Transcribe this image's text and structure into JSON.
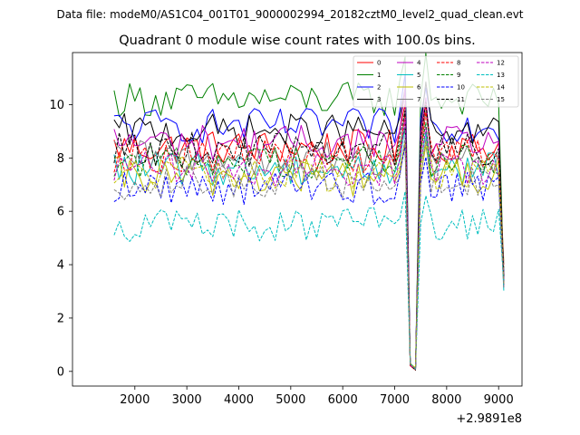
{
  "suptitle": "Data file: modeM0/AS1C04_001T01_9000002994_20182cztM0_level2_quad_clean.evt",
  "chart_data": {
    "type": "line",
    "title": "Quadrant 0 module wise count rates with 100.0s bins.",
    "xlabel": "",
    "ylabel": "",
    "x_offset_label": "+2.9891e8",
    "xlim": [
      800,
      9450
    ],
    "ylim": [
      -0.55,
      11.95
    ],
    "xticks": [
      2000,
      3000,
      4000,
      5000,
      6000,
      7000,
      8000,
      9000
    ],
    "xtick_labels": [
      "2000",
      "3000",
      "4000",
      "5000",
      "6000",
      "7000",
      "8000",
      "9000"
    ],
    "yticks": [
      0,
      2,
      4,
      6,
      8,
      10
    ],
    "ytick_labels": [
      "0",
      "2",
      "4",
      "6",
      "8",
      "10"
    ],
    "legend_loc": "upper right",
    "legend_columns": 4,
    "x": [
      1600,
      1700,
      1800,
      1900,
      2000,
      2100,
      2200,
      2300,
      2400,
      2500,
      2600,
      2700,
      2800,
      2900,
      3000,
      3100,
      3200,
      3300,
      3400,
      3500,
      3600,
      3700,
      3800,
      3900,
      4000,
      4100,
      4200,
      4300,
      4400,
      4500,
      4600,
      4700,
      4800,
      4900,
      5000,
      5100,
      5200,
      5300,
      5400,
      5500,
      5600,
      5700,
      5800,
      5900,
      6000,
      6100,
      6200,
      6300,
      6400,
      6500,
      6600,
      6700,
      6800,
      6900,
      7000,
      7100,
      7200,
      7300,
      7400,
      7500,
      7600,
      7700,
      7800,
      7900,
      8000,
      8100,
      8200,
      8300,
      8400,
      8500,
      8600,
      8700,
      8800,
      8900,
      9000,
      9100
    ],
    "series": [
      {
        "name": "0",
        "color": "#ff0000",
        "dash": "solid",
        "base": 8.4,
        "amp": 0.3,
        "scale": 1.0
      },
      {
        "name": "1",
        "color": "#008000",
        "dash": "solid",
        "base": 10.2,
        "amp": 0.3,
        "scale": 1.05
      },
      {
        "name": "2",
        "color": "#0000ff",
        "dash": "solid",
        "base": 9.2,
        "amp": 0.3,
        "scale": 1.0
      },
      {
        "name": "3",
        "color": "#000000",
        "dash": "solid",
        "base": 9.0,
        "amp": 0.3,
        "scale": 0.95
      },
      {
        "name": "4",
        "color": "#bf00bf",
        "dash": "solid",
        "base": 8.6,
        "amp": 0.3,
        "scale": 1.0
      },
      {
        "name": "5",
        "color": "#00bfbf",
        "dash": "solid",
        "base": 7.6,
        "amp": 0.3,
        "scale": 0.98
      },
      {
        "name": "6",
        "color": "#bfbf00",
        "dash": "solid",
        "base": 7.3,
        "amp": 0.35,
        "scale": 1.0
      },
      {
        "name": "7",
        "color": "#808080",
        "dash": "solid",
        "base": 8.0,
        "amp": 0.3,
        "scale": 1.0
      },
      {
        "name": "8",
        "color": "#ff0000",
        "dash": "dashed",
        "base": 8.1,
        "amp": 0.3,
        "scale": 1.0
      },
      {
        "name": "9",
        "color": "#008000",
        "dash": "dashed",
        "base": 7.9,
        "amp": 0.3,
        "scale": 1.0
      },
      {
        "name": "10",
        "color": "#0000ff",
        "dash": "dashed",
        "base": 6.9,
        "amp": 0.3,
        "scale": 1.0
      },
      {
        "name": "11",
        "color": "#000000",
        "dash": "dashed",
        "base": 8.3,
        "amp": 0.3,
        "scale": 1.0
      },
      {
        "name": "12",
        "color": "#bf00bf",
        "dash": "dashed",
        "base": 7.6,
        "amp": 0.3,
        "scale": 1.0
      },
      {
        "name": "13",
        "color": "#00bfbf",
        "dash": "dashed",
        "base": 5.5,
        "amp": 0.3,
        "scale": 1.0
      },
      {
        "name": "14",
        "color": "#bfbf00",
        "dash": "dashed",
        "base": 7.4,
        "amp": 0.3,
        "scale": 1.0
      },
      {
        "name": "15",
        "color": "#808080",
        "dash": "dashed",
        "base": 7.1,
        "amp": 0.3,
        "scale": 1.0
      }
    ]
  }
}
